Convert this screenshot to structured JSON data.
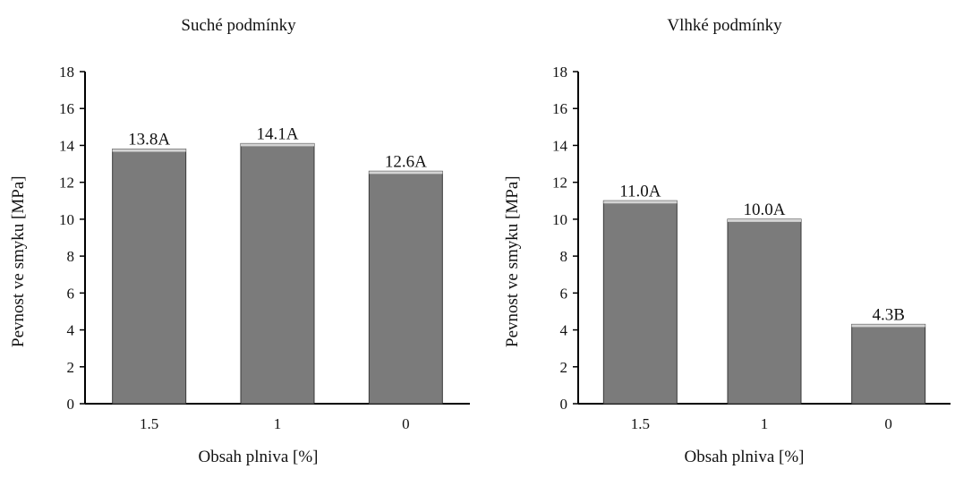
{
  "chart_data": [
    {
      "type": "bar",
      "title": "Suché podmínky",
      "xlabel": "Obsah plniva [%]",
      "ylabel": "Pevnost ve smyku [MPa]",
      "categories": [
        "1.5",
        "1",
        "0"
      ],
      "values": [
        13.8,
        14.1,
        12.6
      ],
      "labels": [
        "13.8A",
        "14.1A",
        "12.6A"
      ],
      "ylim": [
        0,
        18
      ],
      "yticks": [
        0,
        2,
        4,
        6,
        8,
        10,
        12,
        14,
        16,
        18
      ],
      "grid": false,
      "bar_color": "#7b7b7b"
    },
    {
      "type": "bar",
      "title": "Vlhké podmínky",
      "xlabel": "Obsah plniva [%]",
      "ylabel": "Pevnost ve smyku [MPa]",
      "categories": [
        "1.5",
        "1",
        "0"
      ],
      "values": [
        11.0,
        10.0,
        4.3
      ],
      "labels": [
        "11.0A",
        "10.0A",
        "4.3B"
      ],
      "ylim": [
        0,
        18
      ],
      "yticks": [
        0,
        2,
        4,
        6,
        8,
        10,
        12,
        14,
        16,
        18
      ],
      "grid": false,
      "bar_color": "#7b7b7b"
    }
  ]
}
